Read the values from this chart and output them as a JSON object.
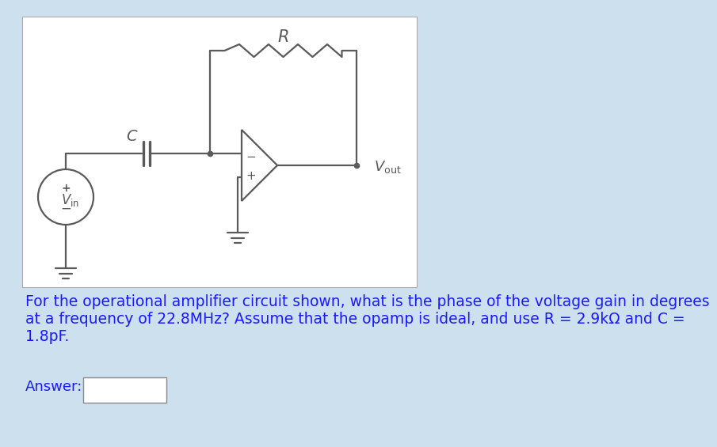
{
  "bg_color": "#cde0ee",
  "circuit_bg": "#ffffff",
  "lc": "#5a5a5a",
  "lw": 1.6,
  "question_line1": "For the operational amplifier circuit shown, what is the phase of the voltage gain in degrees",
  "question_line2": "at a frequency of 22.8MHz? Assume that the opamp is ideal, and use R = 2.9kΩ and C =",
  "question_line3": "1.8pF.",
  "answer_label": "Answer:",
  "text_color": "#1a1aff",
  "q_fontsize": 13.5,
  "ans_fontsize": 13.0
}
